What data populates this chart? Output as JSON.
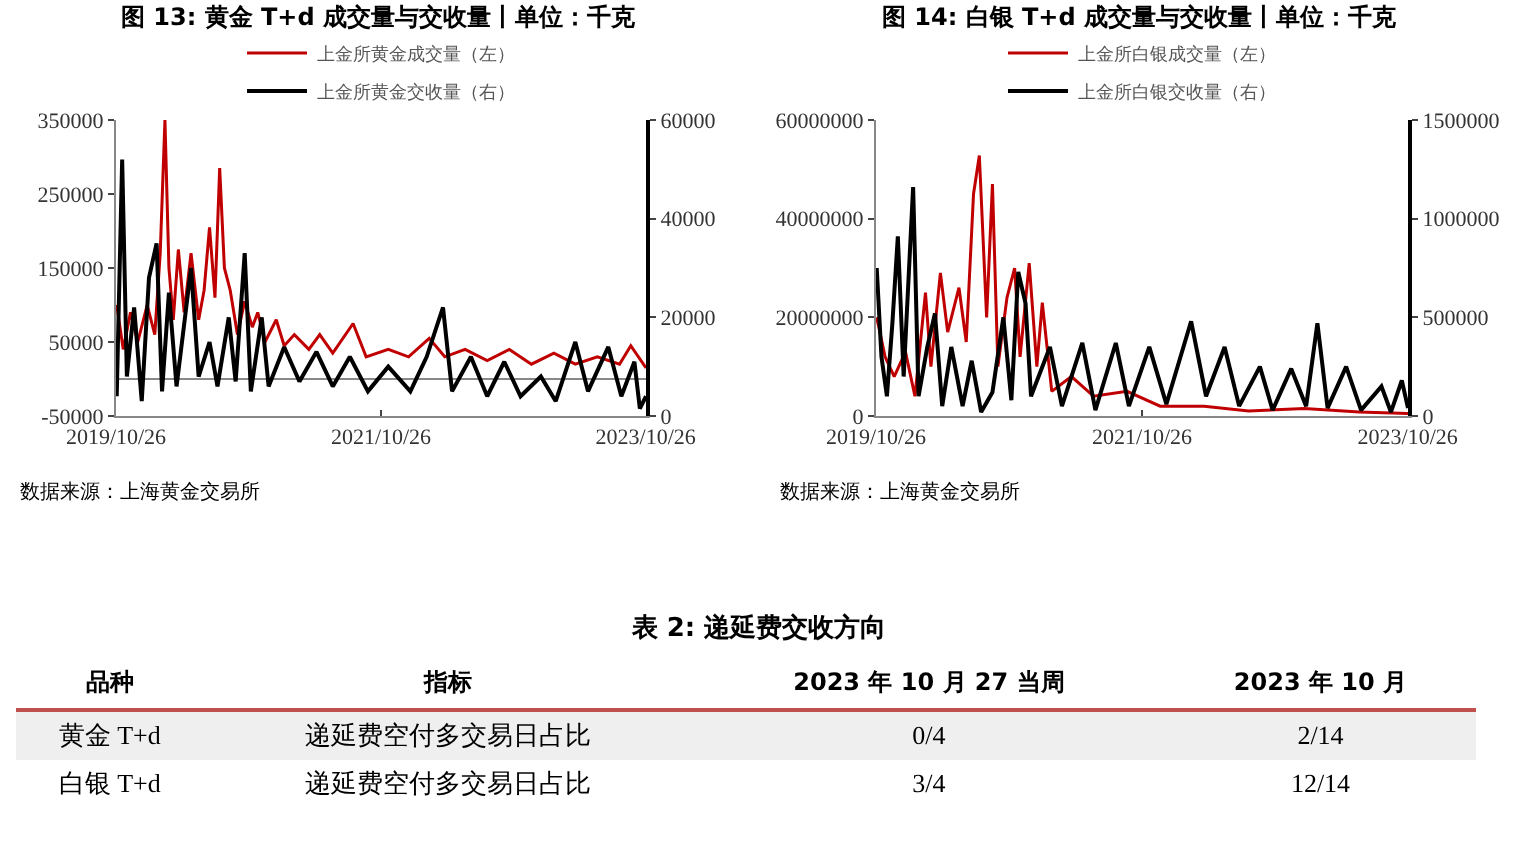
{
  "chart_data": [
    {
      "type": "line",
      "title": "图 13: 黄金 T+d 成交量与交收量丨单位：千克",
      "legend": "top",
      "grid": false,
      "xlim": [
        "2019-10-26",
        "2023-10-27"
      ],
      "xticks": [
        {
          "value": "2019-10-26",
          "label": "2019/10/26"
        },
        {
          "value": "2021-10-26",
          "label": "2021/10/26"
        },
        {
          "value": "2023-10-26",
          "label": "2023/10/26"
        }
      ],
      "ylim": [
        -50000,
        350000
      ],
      "yticks": [
        -50000,
        50000,
        150000,
        250000,
        350000
      ],
      "y2lim": [
        0,
        60000
      ],
      "y2ticks": [
        0,
        20000,
        40000,
        60000
      ],
      "annotations": [
        "数据来源：上海黄金交易所"
      ],
      "series": [
        {
          "name": "上金所黄金成交量（左）",
          "color": "#c00000",
          "x": [
            "2019-10-28",
            "2019-11-15",
            "2019-12-05",
            "2019-12-25",
            "2020-01-20",
            "2020-02-10",
            "2020-02-25",
            "2020-03-09",
            "2020-03-20",
            "2020-04-01",
            "2020-04-15",
            "2020-05-01",
            "2020-05-20",
            "2020-06-10",
            "2020-06-25",
            "2020-07-10",
            "2020-07-25",
            "2020-08-07",
            "2020-08-20",
            "2020-09-05",
            "2020-09-25",
            "2020-10-15",
            "2020-11-05",
            "2020-11-20",
            "2020-12-10",
            "2021-01-10",
            "2021-02-01",
            "2021-03-01",
            "2021-04-10",
            "2021-05-10",
            "2021-06-15",
            "2021-08-10",
            "2021-09-15",
            "2021-11-15",
            "2022-01-10",
            "2022-03-08",
            "2022-04-20",
            "2022-06-15",
            "2022-08-15",
            "2022-10-15",
            "2022-12-15",
            "2023-02-15",
            "2023-04-15",
            "2023-06-15",
            "2023-08-15",
            "2023-09-15",
            "2023-10-27"
          ],
          "values": [
            100000,
            40000,
            90000,
            50000,
            100000,
            60000,
            170000,
            350000,
            150000,
            80000,
            175000,
            90000,
            170000,
            80000,
            120000,
            205000,
            110000,
            285000,
            150000,
            120000,
            60000,
            105000,
            70000,
            90000,
            50000,
            80000,
            45000,
            60000,
            40000,
            60000,
            35000,
            75000,
            30000,
            40000,
            30000,
            55000,
            30000,
            40000,
            25000,
            40000,
            20000,
            35000,
            20000,
            30000,
            20000,
            45000,
            15000
          ]
        },
        {
          "name": "上金所黄金交收量（右）",
          "color": "#000000",
          "axis": "y2",
          "x": [
            "2019-10-28",
            "2019-11-12",
            "2019-11-25",
            "2019-12-15",
            "2020-01-05",
            "2020-01-25",
            "2020-02-15",
            "2020-03-01",
            "2020-03-20",
            "2020-04-10",
            "2020-05-20",
            "2020-06-10",
            "2020-07-10",
            "2020-08-01",
            "2020-09-01",
            "2020-09-20",
            "2020-10-15",
            "2020-11-01",
            "2020-12-01",
            "2020-12-20",
            "2021-02-01",
            "2021-03-15",
            "2021-05-01",
            "2021-06-15",
            "2021-08-01",
            "2021-09-20",
            "2021-11-15",
            "2022-01-15",
            "2022-03-01",
            "2022-04-15",
            "2022-05-10",
            "2022-07-01",
            "2022-08-15",
            "2022-10-01",
            "2022-11-15",
            "2023-01-10",
            "2023-02-20",
            "2023-04-15",
            "2023-05-20",
            "2023-07-15",
            "2023-08-20",
            "2023-09-25",
            "2023-10-10",
            "2023-10-27"
          ],
          "values": [
            4000,
            52000,
            8000,
            22000,
            3000,
            28000,
            35000,
            5000,
            25000,
            6000,
            30000,
            8000,
            15000,
            6000,
            20000,
            7000,
            33000,
            5000,
            20000,
            6000,
            14000,
            7000,
            13000,
            6000,
            12000,
            5000,
            10000,
            5000,
            12000,
            22000,
            5000,
            12000,
            4000,
            11000,
            4000,
            8000,
            3000,
            15000,
            5000,
            14000,
            4000,
            11000,
            1500,
            4000
          ]
        }
      ]
    },
    {
      "type": "line",
      "title": "图 14: 白银 T+d 成交量与交收量丨单位：千克",
      "legend": "top",
      "grid": false,
      "xlim": [
        "2019-10-26",
        "2023-10-27"
      ],
      "xticks": [
        {
          "value": "2019-10-26",
          "label": "2019/10/26"
        },
        {
          "value": "2021-10-26",
          "label": "2021/10/26"
        },
        {
          "value": "2023-10-26",
          "label": "2023/10/26"
        }
      ],
      "ylim": [
        0,
        60000000
      ],
      "yticks": [
        0,
        20000000,
        40000000,
        60000000
      ],
      "y2lim": [
        0,
        1500000
      ],
      "y2ticks": [
        0,
        500000,
        1000000,
        1500000
      ],
      "annotations": [
        "数据来源：上海黄金交易所"
      ],
      "series": [
        {
          "name": "上金所白银成交量（左）",
          "color": "#c00000",
          "x": [
            "2019-10-28",
            "2019-11-20",
            "2019-12-15",
            "2020-01-15",
            "2020-02-10",
            "2020-03-10",
            "2020-03-25",
            "2020-04-20",
            "2020-05-10",
            "2020-06-10",
            "2020-06-30",
            "2020-07-20",
            "2020-08-05",
            "2020-08-25",
            "2020-09-10",
            "2020-09-25",
            "2020-10-20",
            "2020-11-10",
            "2020-11-25",
            "2020-12-20",
            "2021-01-10",
            "2021-01-25",
            "2021-02-20",
            "2021-04-15",
            "2021-06-15",
            "2021-09-15",
            "2021-12-15",
            "2022-04-15",
            "2022-08-15",
            "2023-01-15",
            "2023-06-15",
            "2023-10-27"
          ],
          "values": [
            20000000,
            12000000,
            8000000,
            13000000,
            4000000,
            25000000,
            10000000,
            29000000,
            17000000,
            26000000,
            15000000,
            45000000,
            52800000,
            20000000,
            47000000,
            10000000,
            24000000,
            30000000,
            12000000,
            31000000,
            10000000,
            23000000,
            5000000,
            8000000,
            4000000,
            5000000,
            2000000,
            2000000,
            1000000,
            1500000,
            800000,
            500000
          ]
        },
        {
          "name": "上金所白银交收量（右）",
          "color": "#000000",
          "axis": "y2",
          "x": [
            "2019-10-28",
            "2019-11-10",
            "2019-11-25",
            "2019-12-10",
            "2019-12-25",
            "2020-01-10",
            "2020-02-05",
            "2020-02-20",
            "2020-03-15",
            "2020-04-05",
            "2020-04-25",
            "2020-05-20",
            "2020-06-20",
            "2020-07-15",
            "2020-08-10",
            "2020-09-10",
            "2020-10-10",
            "2020-11-01",
            "2020-11-20",
            "2020-12-10",
            "2020-12-25",
            "2021-02-15",
            "2021-03-20",
            "2021-05-15",
            "2021-06-20",
            "2021-08-15",
            "2021-09-20",
            "2021-11-15",
            "2022-01-01",
            "2022-03-10",
            "2022-04-20",
            "2022-06-10",
            "2022-07-20",
            "2022-09-15",
            "2022-10-20",
            "2022-12-10",
            "2023-01-20",
            "2023-02-20",
            "2023-03-20",
            "2023-05-10",
            "2023-06-20",
            "2023-08-15",
            "2023-09-10",
            "2023-10-10",
            "2023-10-27"
          ],
          "values": [
            750000,
            300000,
            100000,
            470000,
            910000,
            200000,
            1160000,
            100000,
            350000,
            520000,
            50000,
            350000,
            50000,
            280000,
            20000,
            120000,
            500000,
            80000,
            730000,
            570000,
            100000,
            350000,
            50000,
            370000,
            30000,
            370000,
            50000,
            350000,
            60000,
            480000,
            100000,
            350000,
            50000,
            250000,
            30000,
            240000,
            50000,
            470000,
            40000,
            250000,
            30000,
            150000,
            20000,
            180000,
            40000
          ]
        }
      ]
    },
    {
      "type": "other",
      "title": "表 2: 递延费交收方向",
      "categories": [
        "品种",
        "指标",
        "2023 年 10 月 27 当周",
        "2023 年 10 月"
      ],
      "y_categories": [
        "黄金 T+d",
        "白银 T+d"
      ],
      "cell_labels": [
        [
          "递延费空付多交易日占比",
          "0/4",
          "2/14"
        ],
        [
          "递延费空付多交易日占比",
          "3/4",
          "12/14"
        ]
      ]
    }
  ]
}
